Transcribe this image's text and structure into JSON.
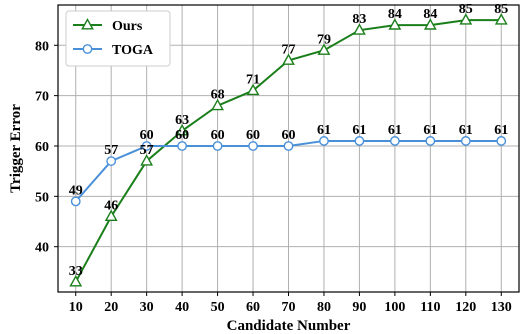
{
  "chart_data": {
    "type": "line",
    "xlabel": "Candidate Number",
    "ylabel": "Trigger Error",
    "x": [
      10,
      20,
      30,
      40,
      50,
      60,
      70,
      80,
      90,
      100,
      110,
      120,
      130
    ],
    "xlim": [
      5,
      135
    ],
    "ylim": [
      31,
      88
    ],
    "yticks": [
      40,
      50,
      60,
      70,
      80
    ],
    "grid": true,
    "legend_position": "top-left",
    "series": [
      {
        "name": "Ours",
        "color": "#1a7f1a",
        "marker": "triangle",
        "values": [
          33,
          46,
          57,
          63,
          68,
          71,
          77,
          79,
          83,
          84,
          84,
          85,
          85
        ],
        "labels": [
          "33",
          "46",
          "57",
          "63",
          "68",
          "71",
          "77",
          "79",
          "83",
          "84",
          "84",
          "85",
          "85"
        ]
      },
      {
        "name": "TOGA",
        "color": "#4a90d9",
        "marker": "circle",
        "values": [
          49,
          57,
          60,
          60,
          60,
          60,
          60,
          61,
          61,
          61,
          61,
          61,
          61
        ],
        "labels": [
          "49",
          "57",
          "60",
          "60",
          "60",
          "60",
          "60",
          "61",
          "61",
          "61",
          "61",
          "61",
          "61"
        ]
      }
    ]
  }
}
